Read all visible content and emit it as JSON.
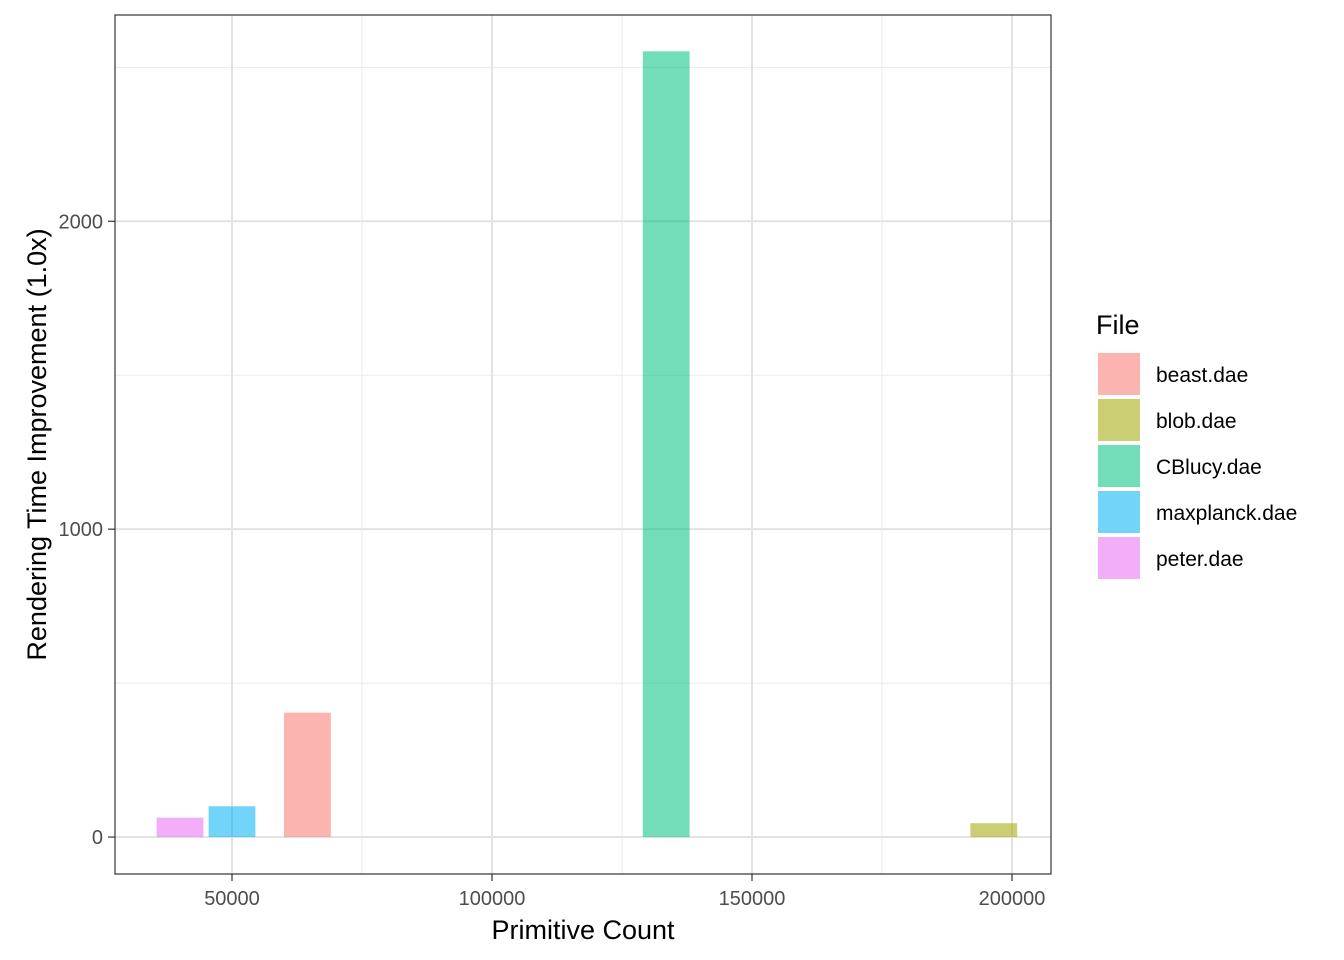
{
  "chart_data": {
    "type": "bar",
    "title": "",
    "xlabel": "Primitive Count",
    "ylabel": "Rendering Time Improvement (1.0x)",
    "xlim": [
      27500,
      207500
    ],
    "ylim": [
      -120,
      2670
    ],
    "x_ticks": [
      50000,
      100000,
      150000,
      200000
    ],
    "y_ticks": [
      0,
      1000,
      2000
    ],
    "x_minor_ticks": [
      75000,
      125000,
      175000
    ],
    "y_minor_ticks": [
      500,
      1500,
      2500
    ],
    "bar_width": 9000,
    "grid": true,
    "legend": {
      "title": "File",
      "position": "right"
    },
    "series": [
      {
        "name": "beast.dae",
        "color": "#F8766D",
        "x": 64500,
        "value": 404
      },
      {
        "name": "blob.dae",
        "color": "#A3A500",
        "x": 196500,
        "value": 45
      },
      {
        "name": "CBlucy.dae",
        "color": "#00BF7D",
        "x": 133500,
        "value": 2552
      },
      {
        "name": "maxplanck.dae",
        "color": "#00B0F6",
        "x": 50000,
        "value": 100
      },
      {
        "name": "peter.dae",
        "color": "#E76BF3",
        "x": 40000,
        "value": 63
      }
    ]
  }
}
